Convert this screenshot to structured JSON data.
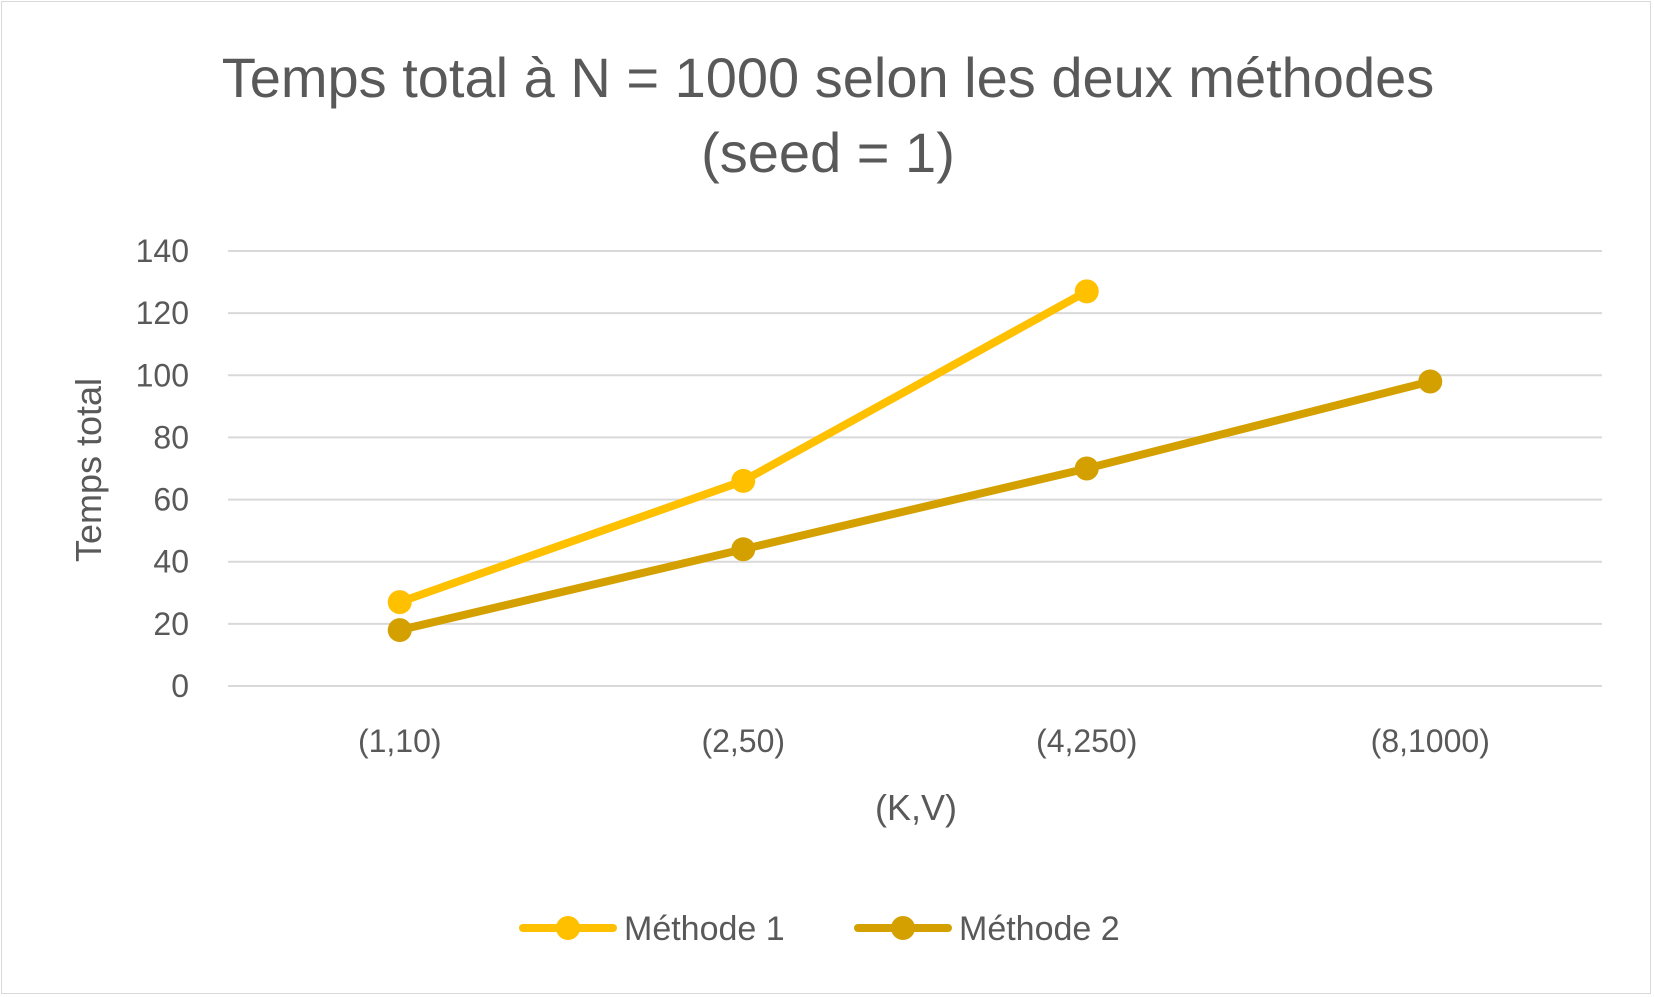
{
  "chart_data": {
    "type": "line",
    "title_lines": [
      "Temps total à N = 1000 selon les deux méthodes",
      "(seed = 1)"
    ],
    "xlabel": "(K,V)",
    "ylabel": "Temps total",
    "categories": [
      "(1,10)",
      "(2,50)",
      "(4,250)",
      "(8,1000)"
    ],
    "ylim": [
      0,
      140
    ],
    "yticks": [
      0,
      20,
      40,
      60,
      80,
      100,
      120,
      140
    ],
    "grid": true,
    "legend_position": "bottom",
    "series": [
      {
        "name": "Méthode 1",
        "color": "#FFC000",
        "values": [
          27,
          66,
          127,
          null
        ]
      },
      {
        "name": "Méthode 2",
        "color": "#D4A000",
        "values": [
          18,
          44,
          70,
          98
        ]
      }
    ]
  }
}
